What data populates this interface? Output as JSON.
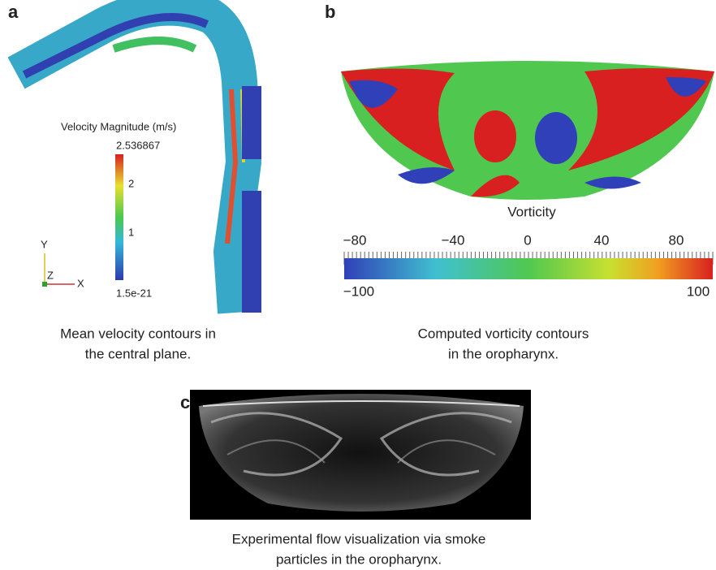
{
  "panel_a": {
    "label": "a",
    "colorbar_title": "Velocity Magnitude (m/s)",
    "colorbar_max": "2.536867",
    "colorbar_ticks": [
      "2",
      "1"
    ],
    "colorbar_min": "1.5e-21",
    "axes": [
      "Y",
      "Z",
      "X"
    ],
    "caption": [
      "Mean velocity contours in",
      "the central plane."
    ]
  },
  "panel_b": {
    "label": "b",
    "colorbar_title": "Vorticity",
    "colorbar_ticks": [
      "−80",
      "−40",
      "0",
      "40",
      "80"
    ],
    "colorbar_min": "−100",
    "colorbar_max": "100",
    "caption": [
      "Computed vorticity contours",
      "in the oropharynx."
    ]
  },
  "panel_c": {
    "label": "c",
    "caption": [
      "Experimental flow visualization via smoke",
      "particles in the oropharynx."
    ]
  }
}
